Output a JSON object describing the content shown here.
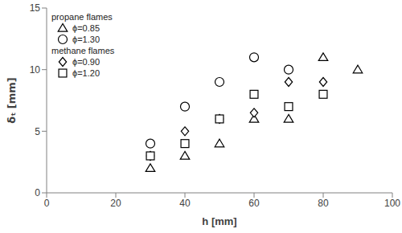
{
  "chart_data": {
    "type": "scatter",
    "x_label": "h [mm]",
    "y_label": "δₜ [mm]",
    "xlim": [
      0,
      100
    ],
    "xticks": [
      0,
      20,
      40,
      60,
      80,
      100
    ],
    "ylim": [
      0,
      15
    ],
    "yticks": [
      0,
      5,
      10,
      15
    ],
    "grid": false,
    "legend": "top-left",
    "series": [
      {
        "name": "ϕ=0.85",
        "group": "propane flames",
        "marker": "triangle",
        "color": "#000000",
        "x": [
          30,
          40,
          50,
          60,
          70,
          80,
          90
        ],
        "values": [
          2,
          3,
          4,
          6,
          6,
          11,
          10
        ]
      },
      {
        "name": "ϕ=1.30",
        "group": "propane flames",
        "marker": "circle",
        "color": "#000000",
        "x": [
          30,
          40,
          50,
          60,
          70
        ],
        "values": [
          4,
          7,
          9,
          11,
          10
        ]
      },
      {
        "name": "ϕ=0.90",
        "group": "methane flames",
        "marker": "diamond",
        "color": "#000000",
        "x": [
          30,
          40,
          50,
          60,
          70,
          80
        ],
        "values": [
          3,
          5,
          6,
          6.5,
          9,
          9
        ]
      },
      {
        "name": "ϕ=1.20",
        "group": "methane flames",
        "marker": "square",
        "color": "#000000",
        "x": [
          30,
          40,
          50,
          60,
          70,
          80
        ],
        "values": [
          3,
          4,
          6,
          8,
          7,
          8
        ]
      }
    ]
  }
}
